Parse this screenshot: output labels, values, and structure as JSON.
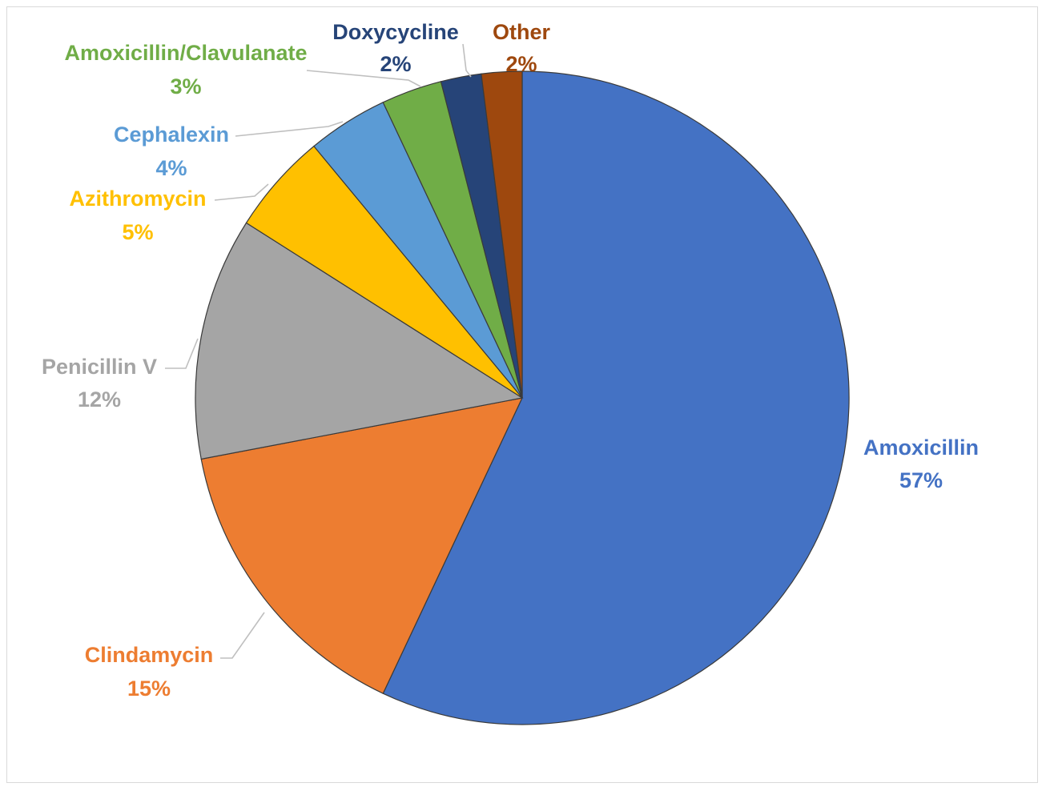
{
  "chart_data": {
    "type": "pie",
    "title": "",
    "legend": "none",
    "start_angle_deg": 0,
    "direction": "clockwise",
    "slices": [
      {
        "label": "Amoxicillin",
        "value": 57,
        "value_label": "57%",
        "color": "#4472C4",
        "label_color": "#4472C4"
      },
      {
        "label": "Clindamycin",
        "value": 15,
        "value_label": "15%",
        "color": "#ED7D31",
        "label_color": "#ED7D31"
      },
      {
        "label": "Penicillin V",
        "value": 12,
        "value_label": "12%",
        "color": "#A5A5A5",
        "label_color": "#A5A5A5"
      },
      {
        "label": "Azithromycin",
        "value": 5,
        "value_label": "5%",
        "color": "#FFC000",
        "label_color": "#FFC000"
      },
      {
        "label": "Cephalexin",
        "value": 4,
        "value_label": "4%",
        "color": "#5B9BD5",
        "label_color": "#5B9BD5"
      },
      {
        "label": "Amoxicillin/Clavulanate",
        "value": 3,
        "value_label": "3%",
        "color": "#70AD47",
        "label_color": "#70AD47"
      },
      {
        "label": "Doxycycline",
        "value": 2,
        "value_label": "2%",
        "color": "#264478",
        "label_color": "#264478"
      },
      {
        "label": "Other",
        "value": 2,
        "value_label": "2%",
        "color": "#9E480E",
        "label_color": "#9E480E"
      }
    ]
  }
}
